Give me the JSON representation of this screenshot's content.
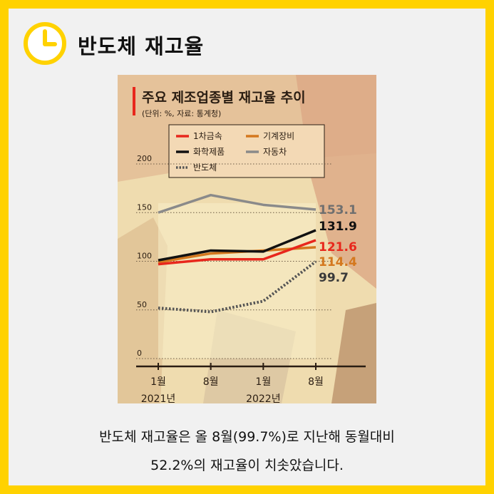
{
  "header": {
    "title": "반도체 재고율"
  },
  "caption": {
    "line1": "반도체 재고율은 올 8월(99.7%)로 지난해 동월대비",
    "line2": "52.2%의 재고율이 치솟았습니다."
  },
  "chart_data": {
    "type": "line",
    "title": "주요 제조업종별 재고율 추이",
    "subtitle": "(단위: %, 자료: 통계청)",
    "categories": [
      "1월 2021년",
      "8월 2021년",
      "1월 2022년",
      "8월 2022년"
    ],
    "x_tick_labels": [
      "1월",
      "8월",
      "1월",
      "8월"
    ],
    "x_year_labels": [
      "2021년",
      "2022년"
    ],
    "y_ticks": [
      0,
      50,
      100,
      150,
      200
    ],
    "ylim": [
      0,
      200
    ],
    "series": [
      {
        "name": "1차금속",
        "values": [
          97,
          102,
          102,
          121.6
        ],
        "color": "#e8271c",
        "style": "solid",
        "end_label": "121.6"
      },
      {
        "name": "기계장비",
        "values": [
          99,
          108,
          111,
          114.4
        ],
        "color": "#d4781e",
        "style": "solid",
        "end_label": "114.4"
      },
      {
        "name": "화학제품",
        "values": [
          101,
          111,
          110,
          131.9
        ],
        "color": "#111111",
        "style": "solid",
        "end_label": "131.9"
      },
      {
        "name": "자동차",
        "values": [
          150,
          168,
          158,
          153.1
        ],
        "color": "#8a8a8a",
        "style": "solid",
        "end_label": "153.1"
      },
      {
        "name": "반도체",
        "values": [
          52,
          48,
          59,
          99.7
        ],
        "color": "#555555",
        "style": "dotted",
        "end_label": "99.7"
      }
    ]
  }
}
